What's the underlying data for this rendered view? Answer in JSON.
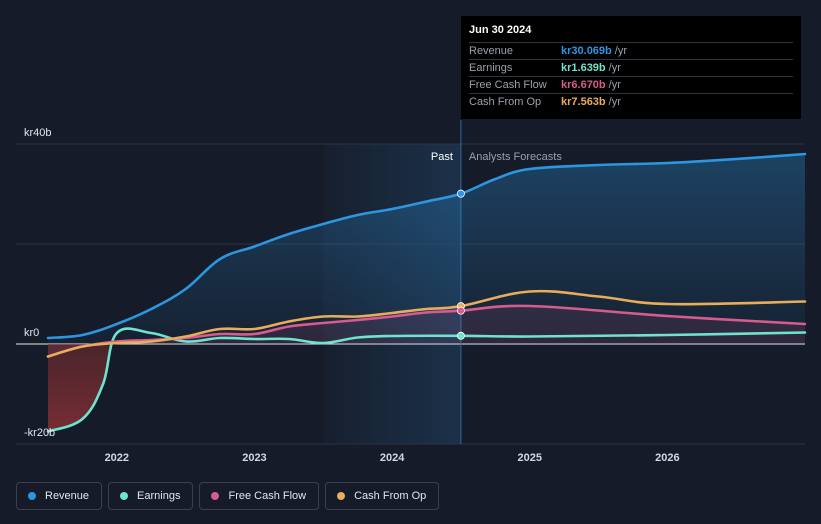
{
  "tooltip": {
    "date": "Jun 30 2024",
    "rows": [
      {
        "name": "Revenue",
        "value": "kr30.069b",
        "unit": "/yr",
        "color": "#2d96e0"
      },
      {
        "name": "Earnings",
        "value": "kr1.639b",
        "unit": "/yr",
        "color": "#6fe3cd"
      },
      {
        "name": "Free Cash Flow",
        "value": "kr6.670b",
        "unit": "/yr",
        "color": "#d65b8f"
      },
      {
        "name": "Cash From Op",
        "value": "kr7.563b",
        "unit": "/yr",
        "color": "#e8ac5a"
      }
    ]
  },
  "legend": [
    {
      "label": "Revenue",
      "color": "#2d96e0"
    },
    {
      "label": "Earnings",
      "color": "#6fe3cd"
    },
    {
      "label": "Free Cash Flow",
      "color": "#d65b8f"
    },
    {
      "label": "Cash From Op",
      "color": "#e8ac5a"
    }
  ],
  "chart_data": {
    "type": "line",
    "ylabel_ticks": [
      "kr40b",
      "kr0",
      "-kr20b"
    ],
    "ylim": [
      -20,
      40
    ],
    "xlim": [
      2021.5,
      2027.0
    ],
    "x_ticks": [
      2022,
      2023,
      2024,
      2025,
      2026
    ],
    "x_tick_labels": [
      "2022",
      "2023",
      "2024",
      "2025",
      "2026"
    ],
    "past_label": "Past",
    "forecast_label": "Analysts Forecasts",
    "forecast_start": 2023.5,
    "divider_x": 2024.5,
    "series": [
      {
        "name": "Revenue",
        "color": "#2d96e0",
        "x": [
          2021.5,
          2021.75,
          2022.0,
          2022.25,
          2022.5,
          2022.75,
          2023.0,
          2023.25,
          2023.5,
          2023.75,
          2024.0,
          2024.25,
          2024.5,
          2024.75,
          2025.0,
          2025.5,
          2026.0,
          2026.5,
          2027.0
        ],
        "y": [
          1.2,
          1.8,
          4.0,
          7.0,
          11.0,
          17.0,
          19.5,
          22.0,
          24.0,
          25.8,
          27.0,
          28.5,
          30.069,
          33.0,
          35.0,
          35.8,
          36.2,
          37.0,
          38.0
        ]
      },
      {
        "name": "Earnings",
        "color": "#6fe3cd",
        "x": [
          2021.5,
          2021.75,
          2021.9,
          2022.0,
          2022.25,
          2022.5,
          2022.75,
          2023.0,
          2023.25,
          2023.5,
          2023.75,
          2024.0,
          2024.5,
          2025.0,
          2026.0,
          2027.0
        ],
        "y": [
          -17.5,
          -15.0,
          -8.0,
          2.2,
          2.2,
          0.5,
          1.2,
          1.0,
          1.0,
          0.2,
          1.3,
          1.6,
          1.639,
          1.5,
          1.8,
          2.3
        ]
      },
      {
        "name": "Free Cash Flow",
        "color": "#d65b8f",
        "x": [
          2021.5,
          2021.75,
          2022.0,
          2022.25,
          2022.5,
          2022.75,
          2023.0,
          2023.25,
          2023.5,
          2023.75,
          2024.0,
          2024.25,
          2024.5,
          2025.0,
          2026.0,
          2027.0
        ],
        "y": [
          -2.5,
          -0.5,
          0.5,
          0.8,
          1.2,
          2.0,
          2.0,
          3.5,
          4.2,
          4.8,
          5.5,
          6.3,
          6.67,
          7.6,
          5.6,
          4.0
        ]
      },
      {
        "name": "Cash From Op",
        "color": "#e8ac5a",
        "x": [
          2021.5,
          2021.75,
          2022.0,
          2022.25,
          2022.5,
          2022.75,
          2023.0,
          2023.25,
          2023.5,
          2023.75,
          2024.0,
          2024.25,
          2024.5,
          2025.0,
          2025.5,
          2026.0,
          2027.0
        ],
        "y": [
          -2.5,
          -0.5,
          0.2,
          0.5,
          1.5,
          3.0,
          3.0,
          4.5,
          5.5,
          5.5,
          6.2,
          7.0,
          7.563,
          10.5,
          9.5,
          8.0,
          8.5
        ]
      }
    ]
  }
}
